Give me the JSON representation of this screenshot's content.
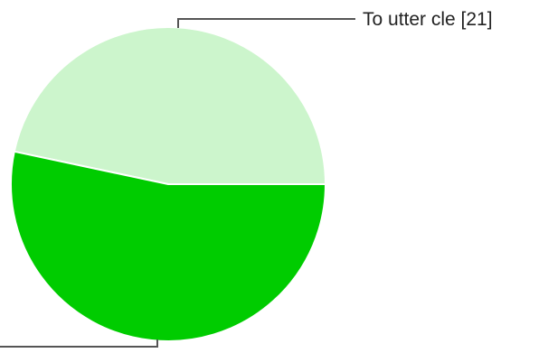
{
  "chart_data": {
    "type": "pie",
    "title": "",
    "slices": [
      {
        "value": 21,
        "label_text": "To utter cle [21]",
        "color": "#ccf5cc",
        "label_shown": true
      },
      {
        "value": 24,
        "label_text": "",
        "color": "#00cc00",
        "label_shown": false
      }
    ],
    "start": "3 o'clock, counter-clockwise",
    "legend": "none (callout labels)"
  }
}
